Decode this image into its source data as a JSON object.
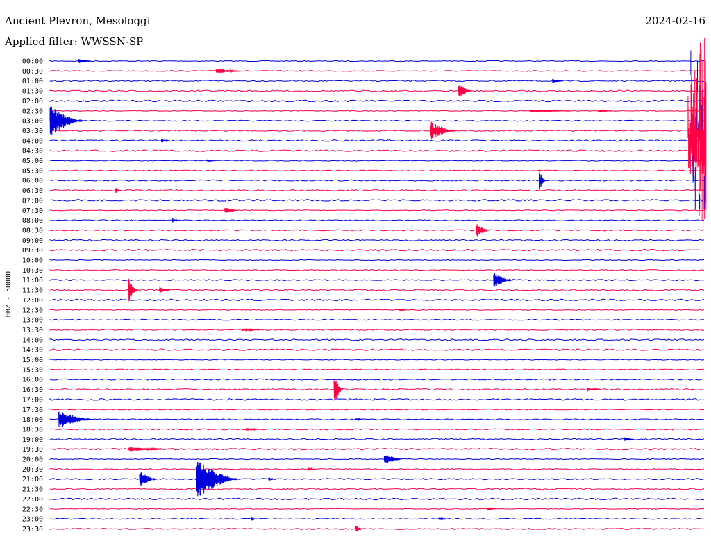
{
  "header": {
    "station": "Ancient Plevron, Mesologgi",
    "filter": "Applied filter: WWSSN-SP",
    "date": "2024-02-16"
  },
  "chart_data": {
    "type": "line",
    "ylabel": "HHZ - 50000",
    "row_labels": [
      "00:00",
      "00:30",
      "01:00",
      "01:30",
      "02:00",
      "02:30",
      "03:00",
      "03:30",
      "04:00",
      "04:30",
      "05:00",
      "05:30",
      "06:00",
      "06:30",
      "07:00",
      "07:30",
      "08:00",
      "08:30",
      "09:00",
      "09:30",
      "10:00",
      "10:30",
      "11:00",
      "11:30",
      "12:00",
      "12:30",
      "13:00",
      "13:30",
      "14:00",
      "14:30",
      "15:00",
      "15:30",
      "16:00",
      "16:30",
      "17:00",
      "17:30",
      "18:00",
      "18:30",
      "19:00",
      "19:30",
      "20:00",
      "20:30",
      "21:00",
      "21:30",
      "22:00",
      "22:30",
      "23:00",
      "23:30"
    ],
    "x_range_minutes": [
      0,
      30
    ],
    "colors": [
      "#0000dd",
      "#ff0044"
    ],
    "events": [
      {
        "row": 0,
        "minute": 1.3,
        "amp": 3,
        "dur": 0.6
      },
      {
        "row": 1,
        "minute": 7.6,
        "amp": 4,
        "dur": 1.2
      },
      {
        "row": 2,
        "minute": 23.0,
        "amp": 3,
        "dur": 0.5
      },
      {
        "row": 3,
        "minute": 18.7,
        "amp": 11,
        "dur": 0.6
      },
      {
        "row": 5,
        "minute": 22.0,
        "amp": 2,
        "dur": 1.8
      },
      {
        "row": 5,
        "minute": 25.1,
        "amp": 2,
        "dur": 0.6
      },
      {
        "row": 6,
        "minute": 0.0,
        "amp": 22,
        "dur": 1.6
      },
      {
        "row": 7,
        "minute": 17.4,
        "amp": 14,
        "dur": 1.2
      },
      {
        "row": 8,
        "minute": 5.1,
        "amp": 3,
        "dur": 0.4
      },
      {
        "row": 10,
        "minute": 7.2,
        "amp": 2,
        "dur": 0.3
      },
      {
        "row": 12,
        "minute": 22.4,
        "amp": 14,
        "dur": 0.3
      },
      {
        "row": 13,
        "minute": 3.0,
        "amp": 5,
        "dur": 0.2
      },
      {
        "row": 15,
        "minute": 8.0,
        "amp": 5,
        "dur": 0.6
      },
      {
        "row": 16,
        "minute": 5.6,
        "amp": 3,
        "dur": 0.3
      },
      {
        "row": 17,
        "minute": 19.5,
        "amp": 10,
        "dur": 0.6
      },
      {
        "row": 22,
        "minute": 20.3,
        "amp": 11,
        "dur": 0.9
      },
      {
        "row": 23,
        "minute": 3.6,
        "amp": 18,
        "dur": 0.4
      },
      {
        "row": 23,
        "minute": 5.0,
        "amp": 5,
        "dur": 0.5
      },
      {
        "row": 25,
        "minute": 16.0,
        "amp": 2,
        "dur": 0.3
      },
      {
        "row": 27,
        "minute": 8.8,
        "amp": 2,
        "dur": 0.8
      },
      {
        "row": 33,
        "minute": 13.0,
        "amp": 24,
        "dur": 0.4
      },
      {
        "row": 33,
        "minute": 24.6,
        "amp": 3,
        "dur": 0.6
      },
      {
        "row": 36,
        "minute": 0.4,
        "amp": 13,
        "dur": 1.6
      },
      {
        "row": 36,
        "minute": 14.0,
        "amp": 2,
        "dur": 0.3
      },
      {
        "row": 37,
        "minute": 9.0,
        "amp": 3,
        "dur": 0.6
      },
      {
        "row": 38,
        "minute": 26.3,
        "amp": 3,
        "dur": 0.4
      },
      {
        "row": 39,
        "minute": 3.6,
        "amp": 3,
        "dur": 2.0
      },
      {
        "row": 40,
        "minute": 15.3,
        "amp": 9,
        "dur": 0.8
      },
      {
        "row": 41,
        "minute": 11.8,
        "amp": 3,
        "dur": 0.3
      },
      {
        "row": 42,
        "minute": 4.1,
        "amp": 13,
        "dur": 0.8
      },
      {
        "row": 42,
        "minute": 6.7,
        "amp": 28,
        "dur": 2.0
      },
      {
        "row": 42,
        "minute": 10.0,
        "amp": 3,
        "dur": 0.3
      },
      {
        "row": 45,
        "minute": 20.0,
        "amp": 2,
        "dur": 0.4
      },
      {
        "row": 46,
        "minute": 9.2,
        "amp": 3,
        "dur": 0.2
      },
      {
        "row": 46,
        "minute": 17.8,
        "amp": 2,
        "dur": 0.4
      },
      {
        "row": 47,
        "minute": 14.0,
        "amp": 5,
        "dur": 0.3
      }
    ],
    "burst": {
      "rows": [
        0,
        17
      ],
      "minute": 29.9,
      "amp": 55
    }
  }
}
